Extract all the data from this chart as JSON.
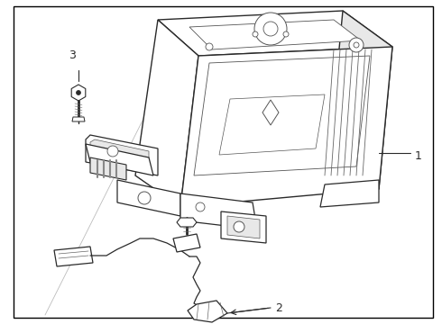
{
  "background_color": "#ffffff",
  "border_color": "#000000",
  "line_color": "#2a2a2a",
  "label_color": "#000000",
  "fig_width": 4.9,
  "fig_height": 3.6,
  "dpi": 100,
  "border": [
    0.03,
    0.02,
    0.95,
    0.96
  ],
  "label_1": [
    0.955,
    0.47
  ],
  "label_2": [
    0.435,
    0.135
  ],
  "label_3": [
    0.105,
    0.85
  ]
}
